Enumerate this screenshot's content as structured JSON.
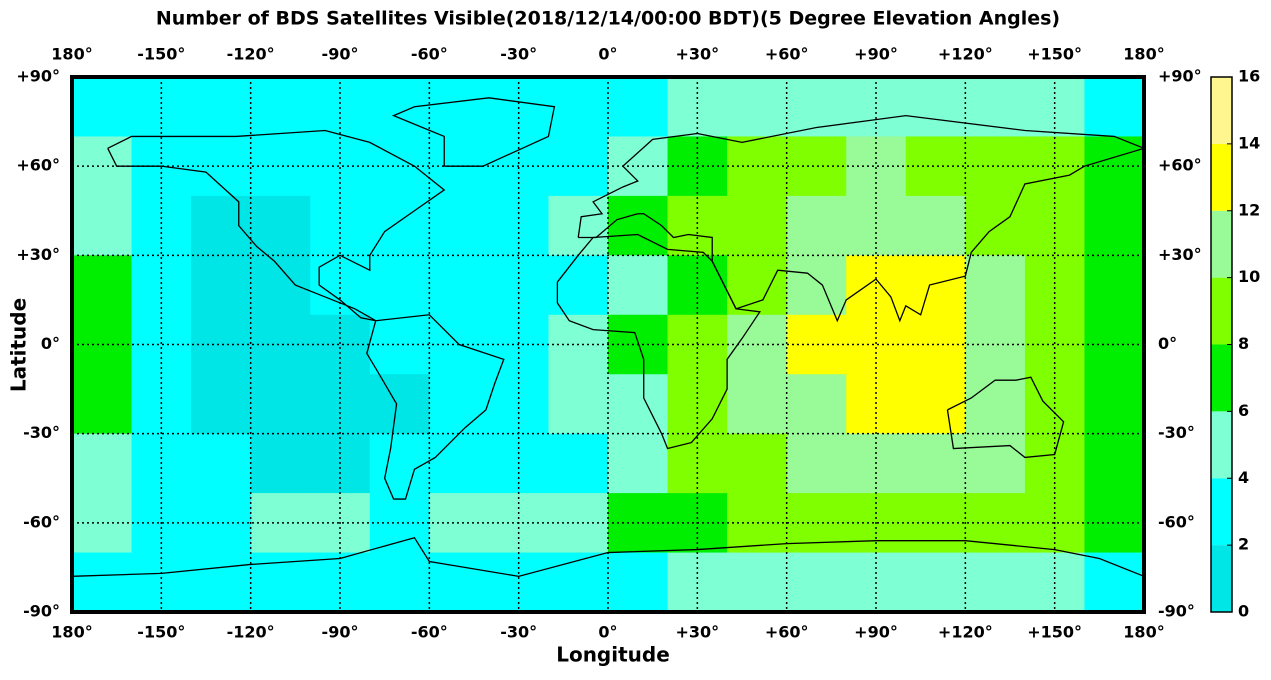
{
  "chart_data": {
    "type": "heatmap",
    "title": "Number of BDS Satellites Visible(2018/12/14/00:00 BDT)(5 Degree Elevation Angles)",
    "xlabel": "Longitude",
    "ylabel": "Latitude",
    "x": [
      -170,
      -150,
      -130,
      -110,
      -90,
      -70,
      -50,
      -30,
      -10,
      10,
      30,
      50,
      70,
      90,
      110,
      130,
      150,
      170
    ],
    "y": [
      80,
      60,
      40,
      20,
      0,
      -20,
      -40,
      -60,
      -80
    ],
    "values": [
      [
        3,
        3,
        3,
        3,
        3,
        3,
        3,
        3,
        3,
        3,
        5,
        5,
        5,
        5,
        5,
        5,
        5,
        3
      ],
      [
        5,
        3,
        3,
        3,
        3,
        3,
        3,
        3,
        3,
        5,
        7,
        9,
        9,
        11,
        9,
        9,
        9,
        7
      ],
      [
        5,
        3,
        1,
        1,
        3,
        3,
        3,
        3,
        5,
        7,
        9,
        9,
        11,
        11,
        11,
        9,
        9,
        7
      ],
      [
        7,
        3,
        1,
        1,
        3,
        3,
        3,
        3,
        3,
        5,
        7,
        9,
        11,
        13,
        13,
        11,
        9,
        7
      ],
      [
        7,
        3,
        1,
        1,
        1,
        3,
        3,
        3,
        5,
        7,
        9,
        11,
        13,
        13,
        13,
        11,
        9,
        7
      ],
      [
        7,
        3,
        1,
        1,
        1,
        1,
        3,
        3,
        5,
        5,
        9,
        11,
        11,
        13,
        13,
        11,
        9,
        7
      ],
      [
        5,
        3,
        3,
        1,
        1,
        3,
        3,
        3,
        3,
        5,
        9,
        9,
        11,
        11,
        11,
        11,
        9,
        7
      ],
      [
        5,
        3,
        3,
        5,
        5,
        3,
        5,
        5,
        5,
        7,
        7,
        9,
        9,
        9,
        9,
        9,
        9,
        7
      ],
      [
        3,
        3,
        3,
        3,
        3,
        3,
        3,
        3,
        3,
        3,
        5,
        5,
        5,
        5,
        5,
        5,
        5,
        3
      ]
    ],
    "xlim": [
      -180,
      180
    ],
    "ylim": [
      -90,
      90
    ],
    "xticks": [
      {
        "value": -180,
        "label": "180°"
      },
      {
        "value": -150,
        "label": "-150°"
      },
      {
        "value": -120,
        "label": "-120°"
      },
      {
        "value": -90,
        "label": "-90°"
      },
      {
        "value": -60,
        "label": "-60°"
      },
      {
        "value": -30,
        "label": "-30°"
      },
      {
        "value": 0,
        "label": "0°"
      },
      {
        "value": 30,
        "label": "+30°"
      },
      {
        "value": 60,
        "label": "+60°"
      },
      {
        "value": 90,
        "label": "+90°"
      },
      {
        "value": 120,
        "label": "+120°"
      },
      {
        "value": 150,
        "label": "+150°"
      },
      {
        "value": 180,
        "label": "180°"
      }
    ],
    "yticks": [
      {
        "value": 90,
        "label": "+90°"
      },
      {
        "value": 60,
        "label": "+60°"
      },
      {
        "value": 30,
        "label": "+30°"
      },
      {
        "value": 0,
        "label": "0°"
      },
      {
        "value": -30,
        "label": "-30°"
      },
      {
        "value": -60,
        "label": "-60°"
      },
      {
        "value": -90,
        "label": "-90°"
      }
    ],
    "grid": true,
    "colorbar": {
      "ticks": [
        0,
        2,
        4,
        6,
        8,
        10,
        12,
        14,
        16
      ],
      "colors": [
        "#00e5e5",
        "#00ffff",
        "#7fffd4",
        "#00ee00",
        "#7fff00",
        "#98fb98",
        "#ffff00",
        "#fff68f"
      ]
    }
  }
}
